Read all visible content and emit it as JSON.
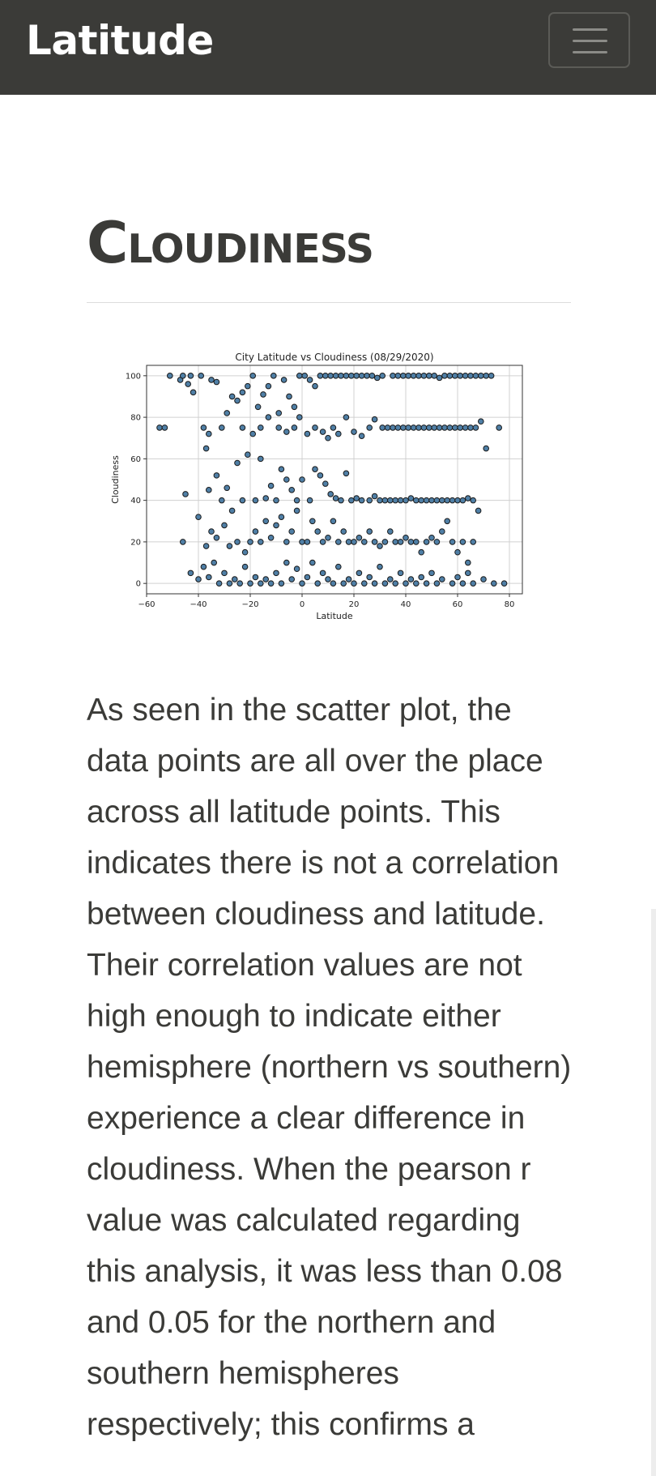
{
  "navbar": {
    "brand": "Latitude",
    "menu_icon": "hamburger-menu-icon"
  },
  "page": {
    "heading": "Cloudiness",
    "description": "As seen in the scatter plot, the data points are all over the place across all latitude points. This indicates there is not a correlation between cloudiness and latitude. Their correlation values are not high enough to indicate either hemisphere (northern vs southern) experience a clear difference in cloudiness. When the pearson r value was calculated regarding this analysis, it was less than 0.08 and 0.05 for the northern and southern hemispheres respectively; this confirms a"
  },
  "colors": {
    "navbar_bg": "#3b3b38",
    "point_fill": "#4f7fa6",
    "point_edge": "#1a1a1a"
  },
  "chart_data": {
    "type": "scatter",
    "title": "City Latitude vs Cloudiness (08/29/2020)",
    "xlabel": "Latitude",
    "ylabel": "Cloudiness",
    "xlim": [
      -60,
      85
    ],
    "ylim": [
      -5,
      105
    ],
    "xticks": [
      -60,
      -40,
      -20,
      0,
      20,
      40,
      60,
      80
    ],
    "yticks": [
      0,
      20,
      40,
      60,
      80,
      100
    ],
    "grid": true,
    "series": [
      {
        "points": [
          [
            -55,
            75
          ],
          [
            -53,
            75
          ],
          [
            -51,
            100
          ],
          [
            -47,
            98
          ],
          [
            -46,
            100
          ],
          [
            -43,
            100
          ],
          [
            -44,
            96
          ],
          [
            -42,
            92
          ],
          [
            -39,
            100
          ],
          [
            -38,
            75
          ],
          [
            -37,
            65
          ],
          [
            -36,
            72
          ],
          [
            -35,
            98
          ],
          [
            -33,
            97
          ],
          [
            -31,
            75
          ],
          [
            -29,
            82
          ],
          [
            -27,
            90
          ],
          [
            -25,
            88
          ],
          [
            -23,
            92
          ],
          [
            -21,
            95
          ],
          [
            -19,
            100
          ],
          [
            -17,
            85
          ],
          [
            -15,
            91
          ],
          [
            -13,
            95
          ],
          [
            -11,
            100
          ],
          [
            -9,
            82
          ],
          [
            -7,
            98
          ],
          [
            -5,
            90
          ],
          [
            -3,
            85
          ],
          [
            -1,
            100
          ],
          [
            1,
            100
          ],
          [
            3,
            98
          ],
          [
            5,
            95
          ],
          [
            7,
            100
          ],
          [
            9,
            100
          ],
          [
            11,
            100
          ],
          [
            13,
            100
          ],
          [
            15,
            100
          ],
          [
            17,
            100
          ],
          [
            19,
            100
          ],
          [
            21,
            100
          ],
          [
            23,
            100
          ],
          [
            25,
            100
          ],
          [
            27,
            100
          ],
          [
            29,
            99
          ],
          [
            31,
            100
          ],
          [
            35,
            100
          ],
          [
            37,
            100
          ],
          [
            39,
            100
          ],
          [
            41,
            100
          ],
          [
            43,
            100
          ],
          [
            45,
            100
          ],
          [
            47,
            100
          ],
          [
            49,
            100
          ],
          [
            51,
            100
          ],
          [
            53,
            99
          ],
          [
            55,
            100
          ],
          [
            57,
            100
          ],
          [
            59,
            100
          ],
          [
            61,
            100
          ],
          [
            63,
            100
          ],
          [
            65,
            100
          ],
          [
            67,
            100
          ],
          [
            69,
            100
          ],
          [
            71,
            100
          ],
          [
            73,
            100
          ],
          [
            -23,
            75
          ],
          [
            -19,
            72
          ],
          [
            -16,
            75
          ],
          [
            -13,
            80
          ],
          [
            -9,
            75
          ],
          [
            -6,
            73
          ],
          [
            -3,
            75
          ],
          [
            -1,
            80
          ],
          [
            2,
            72
          ],
          [
            5,
            75
          ],
          [
            8,
            73
          ],
          [
            10,
            70
          ],
          [
            12,
            75
          ],
          [
            14,
            72
          ],
          [
            17,
            80
          ],
          [
            20,
            73
          ],
          [
            23,
            71
          ],
          [
            26,
            75
          ],
          [
            28,
            79
          ],
          [
            31,
            75
          ],
          [
            33,
            75
          ],
          [
            35,
            75
          ],
          [
            37,
            75
          ],
          [
            39,
            75
          ],
          [
            41,
            75
          ],
          [
            43,
            75
          ],
          [
            45,
            75
          ],
          [
            47,
            75
          ],
          [
            49,
            75
          ],
          [
            51,
            75
          ],
          [
            53,
            75
          ],
          [
            55,
            75
          ],
          [
            57,
            75
          ],
          [
            59,
            75
          ],
          [
            61,
            75
          ],
          [
            63,
            75
          ],
          [
            65,
            75
          ],
          [
            67,
            75
          ],
          [
            69,
            78
          ],
          [
            71,
            65
          ],
          [
            76,
            75
          ],
          [
            -45,
            43
          ],
          [
            -36,
            45
          ],
          [
            -33,
            52
          ],
          [
            -31,
            40
          ],
          [
            -29,
            46
          ],
          [
            -27,
            35
          ],
          [
            -25,
            58
          ],
          [
            -23,
            40
          ],
          [
            -21,
            62
          ],
          [
            -18,
            40
          ],
          [
            -16,
            60
          ],
          [
            -14,
            41
          ],
          [
            -12,
            47
          ],
          [
            -10,
            40
          ],
          [
            -8,
            55
          ],
          [
            -6,
            50
          ],
          [
            -4,
            45
          ],
          [
            -2,
            40
          ],
          [
            0,
            50
          ],
          [
            3,
            40
          ],
          [
            5,
            55
          ],
          [
            7,
            52
          ],
          [
            9,
            48
          ],
          [
            11,
            43
          ],
          [
            13,
            41
          ],
          [
            15,
            40
          ],
          [
            17,
            53
          ],
          [
            19,
            40
          ],
          [
            21,
            41
          ],
          [
            23,
            40
          ],
          [
            26,
            40
          ],
          [
            28,
            42
          ],
          [
            30,
            40
          ],
          [
            32,
            40
          ],
          [
            34,
            40
          ],
          [
            36,
            40
          ],
          [
            38,
            40
          ],
          [
            40,
            40
          ],
          [
            42,
            41
          ],
          [
            44,
            40
          ],
          [
            46,
            40
          ],
          [
            48,
            40
          ],
          [
            50,
            40
          ],
          [
            52,
            40
          ],
          [
            54,
            40
          ],
          [
            56,
            40
          ],
          [
            58,
            40
          ],
          [
            60,
            40
          ],
          [
            62,
            40
          ],
          [
            64,
            41
          ],
          [
            66,
            40
          ],
          [
            68,
            35
          ],
          [
            -46,
            20
          ],
          [
            -40,
            32
          ],
          [
            -37,
            18
          ],
          [
            -35,
            25
          ],
          [
            -33,
            22
          ],
          [
            -30,
            28
          ],
          [
            -28,
            18
          ],
          [
            -25,
            20
          ],
          [
            -22,
            15
          ],
          [
            -20,
            20
          ],
          [
            -18,
            25
          ],
          [
            -16,
            20
          ],
          [
            -14,
            30
          ],
          [
            -12,
            22
          ],
          [
            -10,
            28
          ],
          [
            -8,
            32
          ],
          [
            -6,
            20
          ],
          [
            -4,
            25
          ],
          [
            -2,
            35
          ],
          [
            0,
            20
          ],
          [
            2,
            20
          ],
          [
            4,
            30
          ],
          [
            6,
            25
          ],
          [
            8,
            20
          ],
          [
            10,
            22
          ],
          [
            12,
            30
          ],
          [
            14,
            20
          ],
          [
            16,
            25
          ],
          [
            18,
            20
          ],
          [
            20,
            20
          ],
          [
            22,
            22
          ],
          [
            24,
            20
          ],
          [
            26,
            25
          ],
          [
            28,
            20
          ],
          [
            30,
            18
          ],
          [
            32,
            20
          ],
          [
            34,
            25
          ],
          [
            36,
            20
          ],
          [
            38,
            20
          ],
          [
            40,
            22
          ],
          [
            42,
            20
          ],
          [
            44,
            20
          ],
          [
            46,
            15
          ],
          [
            48,
            20
          ],
          [
            50,
            22
          ],
          [
            52,
            20
          ],
          [
            54,
            25
          ],
          [
            56,
            30
          ],
          [
            58,
            20
          ],
          [
            60,
            15
          ],
          [
            62,
            20
          ],
          [
            64,
            10
          ],
          [
            66,
            20
          ],
          [
            -43,
            5
          ],
          [
            -40,
            2
          ],
          [
            -38,
            8
          ],
          [
            -36,
            3
          ],
          [
            -34,
            10
          ],
          [
            -32,
            0
          ],
          [
            -30,
            5
          ],
          [
            -28,
            0
          ],
          [
            -26,
            2
          ],
          [
            -24,
            0
          ],
          [
            -22,
            8
          ],
          [
            -20,
            0
          ],
          [
            -18,
            3
          ],
          [
            -16,
            0
          ],
          [
            -14,
            2
          ],
          [
            -12,
            0
          ],
          [
            -10,
            5
          ],
          [
            -8,
            0
          ],
          [
            -6,
            10
          ],
          [
            -4,
            2
          ],
          [
            -2,
            7
          ],
          [
            0,
            0
          ],
          [
            2,
            3
          ],
          [
            4,
            10
          ],
          [
            6,
            0
          ],
          [
            8,
            5
          ],
          [
            10,
            2
          ],
          [
            12,
            0
          ],
          [
            14,
            8
          ],
          [
            16,
            0
          ],
          [
            18,
            2
          ],
          [
            20,
            0
          ],
          [
            22,
            5
          ],
          [
            24,
            0
          ],
          [
            26,
            3
          ],
          [
            28,
            0
          ],
          [
            30,
            8
          ],
          [
            32,
            0
          ],
          [
            34,
            2
          ],
          [
            36,
            0
          ],
          [
            38,
            5
          ],
          [
            40,
            0
          ],
          [
            42,
            2
          ],
          [
            44,
            0
          ],
          [
            46,
            3
          ],
          [
            48,
            0
          ],
          [
            50,
            5
          ],
          [
            52,
            0
          ],
          [
            54,
            2
          ],
          [
            58,
            0
          ],
          [
            60,
            3
          ],
          [
            62,
            0
          ],
          [
            64,
            5
          ],
          [
            66,
            0
          ],
          [
            70,
            2
          ],
          [
            74,
            0
          ],
          [
            78,
            0
          ]
        ]
      }
    ]
  }
}
